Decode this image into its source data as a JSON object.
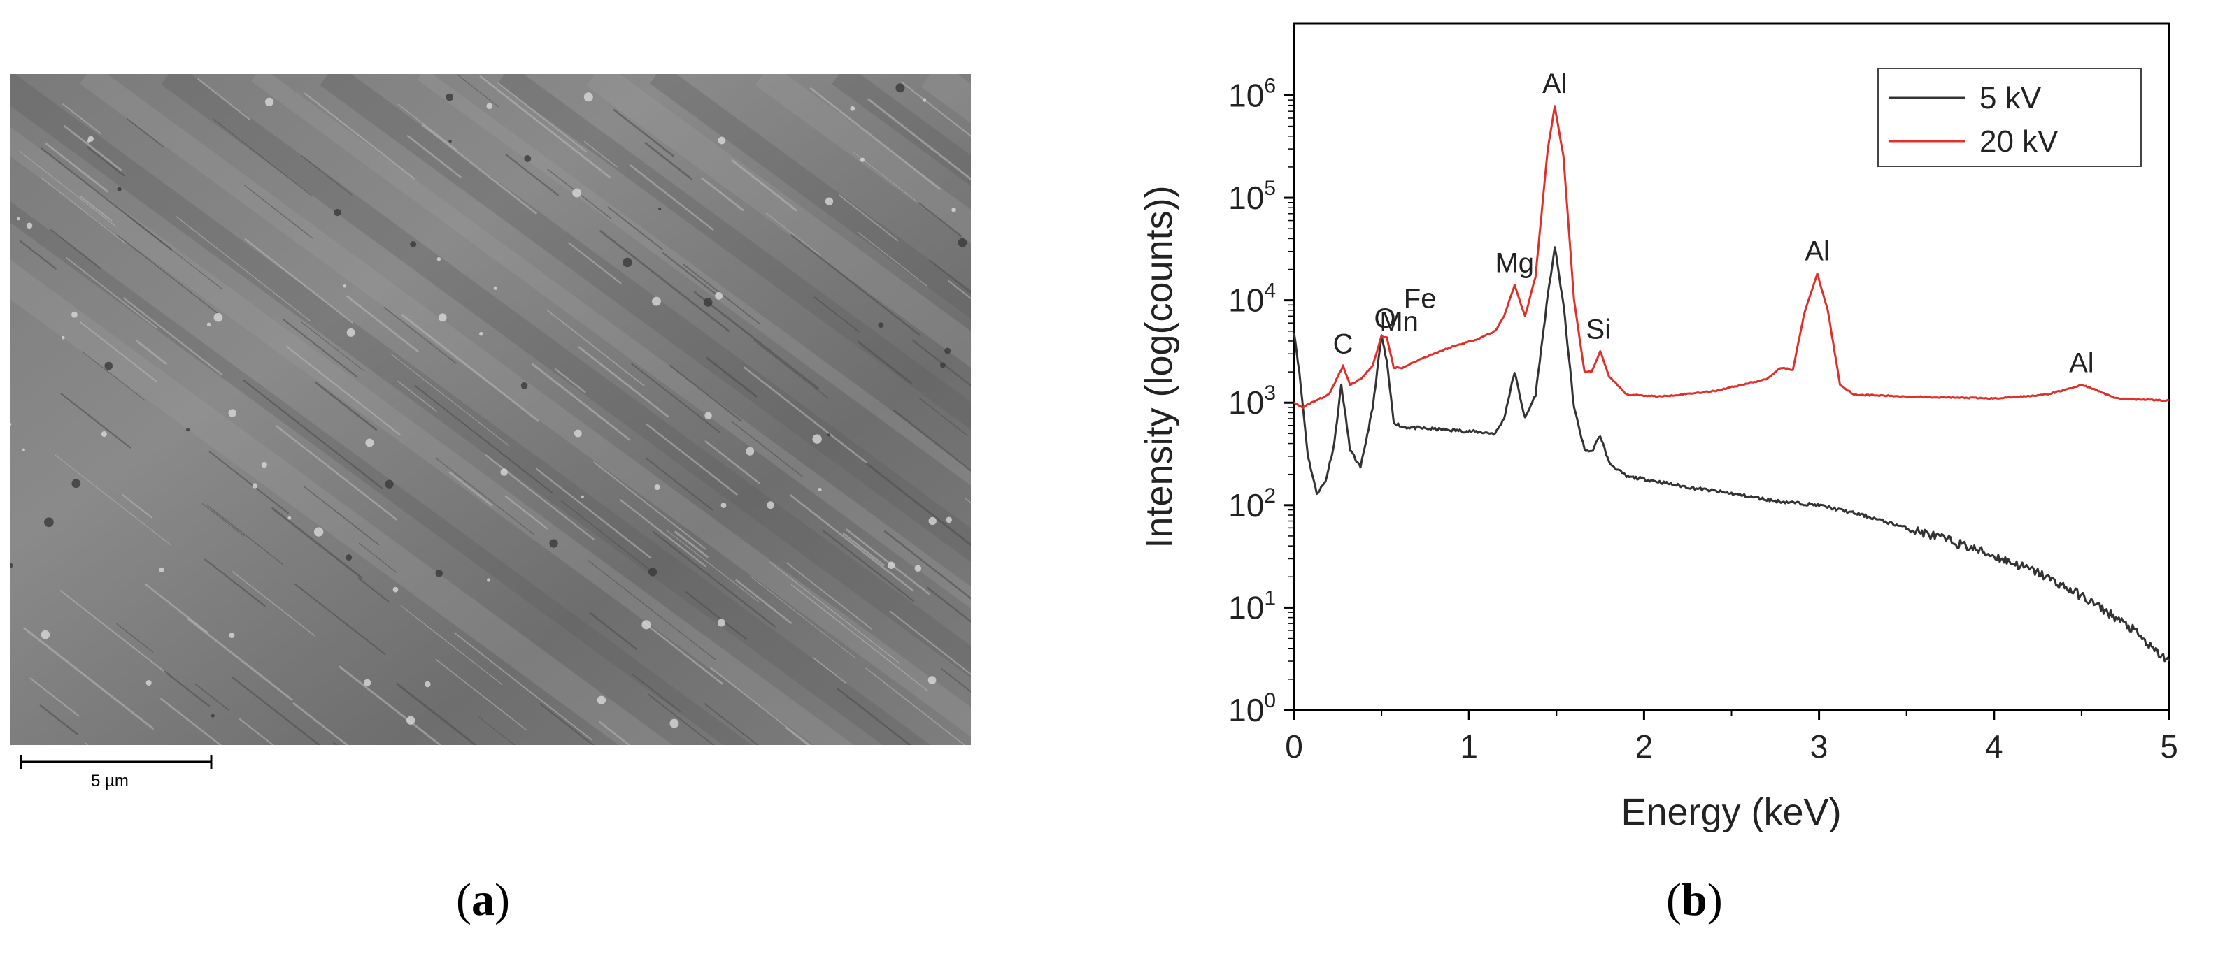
{
  "panel_a": {
    "scale_bar_label": "5 µm",
    "caption_letter": "a"
  },
  "panel_b": {
    "caption_letter": "b"
  },
  "chart_data": {
    "type": "line",
    "title": "",
    "xlabel": "Energy (keV)",
    "ylabel": "Intensity (log(counts))",
    "xlim": [
      0,
      5
    ],
    "ylim": [
      1,
      5000000
    ],
    "yscale": "log",
    "x_ticks": [
      "0",
      "1",
      "2",
      "3",
      "4",
      "5"
    ],
    "y_ticks": [
      {
        "base": "10",
        "exp": "0"
      },
      {
        "base": "10",
        "exp": "1"
      },
      {
        "base": "10",
        "exp": "2"
      },
      {
        "base": "10",
        "exp": "3"
      },
      {
        "base": "10",
        "exp": "4"
      },
      {
        "base": "10",
        "exp": "5"
      },
      {
        "base": "10",
        "exp": "6"
      }
    ],
    "grid": false,
    "legend_position": "top-right",
    "series": [
      {
        "name": "5 kV",
        "color": "#333333",
        "x": [
          0.0,
          0.03,
          0.08,
          0.13,
          0.18,
          0.23,
          0.27,
          0.32,
          0.38,
          0.45,
          0.5,
          0.53,
          0.57,
          0.62,
          0.75,
          0.9,
          1.05,
          1.15,
          1.2,
          1.26,
          1.32,
          1.38,
          1.45,
          1.49,
          1.54,
          1.6,
          1.66,
          1.7,
          1.75,
          1.8,
          1.9,
          2.0,
          2.25,
          2.5,
          2.75,
          3.0,
          3.25,
          3.5,
          3.75,
          4.0,
          4.25,
          4.5,
          4.65,
          4.8,
          4.9,
          5.0
        ],
        "y": [
          5000,
          2000,
          300,
          130,
          170,
          400,
          1500,
          350,
          230,
          900,
          4500,
          2500,
          650,
          580,
          560,
          540,
          520,
          500,
          700,
          2000,
          700,
          1200,
          11000,
          33000,
          9000,
          900,
          350,
          330,
          480,
          260,
          190,
          180,
          150,
          130,
          110,
          100,
          80,
          60,
          45,
          32,
          22,
          13,
          9,
          6,
          4,
          3
        ]
      },
      {
        "name": "20 kV",
        "color": "#e0302a",
        "x": [
          0.0,
          0.05,
          0.1,
          0.15,
          0.2,
          0.25,
          0.28,
          0.32,
          0.38,
          0.45,
          0.5,
          0.53,
          0.57,
          0.62,
          0.75,
          0.9,
          1.05,
          1.15,
          1.2,
          1.26,
          1.32,
          1.38,
          1.45,
          1.49,
          1.54,
          1.6,
          1.66,
          1.7,
          1.75,
          1.8,
          1.9,
          2.1,
          2.4,
          2.7,
          2.78,
          2.85,
          2.92,
          2.99,
          3.05,
          3.12,
          3.2,
          3.5,
          4.0,
          4.3,
          4.45,
          4.5,
          4.55,
          4.7,
          5.0
        ],
        "y": [
          1000,
          900,
          1000,
          1100,
          1200,
          1800,
          2300,
          1500,
          1700,
          2300,
          4500,
          4300,
          2200,
          2200,
          2800,
          3500,
          4200,
          5000,
          7000,
          14000,
          7000,
          17000,
          300000,
          780000,
          250000,
          10000,
          2000,
          2000,
          3200,
          1800,
          1200,
          1150,
          1300,
          1700,
          2200,
          2100,
          8000,
          18000,
          8000,
          1500,
          1200,
          1150,
          1100,
          1200,
          1400,
          1500,
          1400,
          1100,
          1050
        ]
      }
    ],
    "annotations": [
      {
        "text": "C",
        "x": 0.28,
        "y": 2600
      },
      {
        "text": "O",
        "x": 0.52,
        "y": 4600
      },
      {
        "text": "Mn",
        "x": 0.6,
        "y": 4300
      },
      {
        "text": "Fe",
        "x": 0.72,
        "y": 7200
      },
      {
        "text": "Mg",
        "x": 1.26,
        "y": 16000
      },
      {
        "text": "Al",
        "x": 1.49,
        "y": 900000
      },
      {
        "text": "Si",
        "x": 1.74,
        "y": 3600
      },
      {
        "text": "Al",
        "x": 2.99,
        "y": 21000
      },
      {
        "text": "Al",
        "x": 4.5,
        "y": 1700
      }
    ]
  }
}
